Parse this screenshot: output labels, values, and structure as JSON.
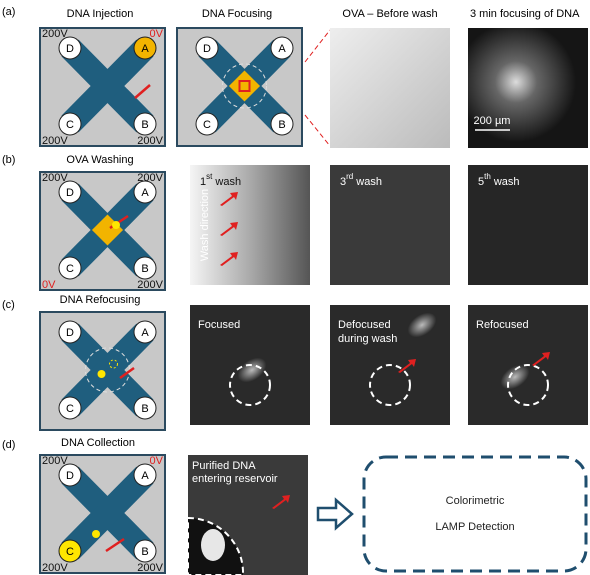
{
  "a": {
    "label": "(a)",
    "titles": [
      "DNA Injection",
      "DNA Focusing",
      "OVA – Before wash",
      "3 min focusing of DNA"
    ],
    "chip": {
      "voltages": [
        "200V",
        "0V",
        "200V",
        "200V"
      ],
      "nodes": [
        "D",
        "A",
        "C",
        "B"
      ]
    },
    "chip2": {
      "nodes": [
        "D",
        "A",
        "C",
        "B"
      ]
    },
    "scale_bar": "200 µm"
  },
  "b": {
    "label": "(b)",
    "title": "OVA Washing",
    "chip": {
      "voltages": [
        "200V",
        "200V",
        "0V",
        "200V"
      ],
      "nodes": [
        "D",
        "A",
        "C",
        "B"
      ]
    },
    "washes": [
      {
        "number": "1",
        "suffix": "st",
        "rest": " wash"
      },
      {
        "number": "3",
        "suffix": "rd",
        "rest": " wash"
      },
      {
        "number": "5",
        "suffix": "th",
        "rest": " wash"
      }
    ],
    "wash_direction": "Wash direction"
  },
  "c": {
    "label": "(c)",
    "title": "DNA Refocusing",
    "chip": {
      "nodes": [
        "D",
        "A",
        "C",
        "B"
      ]
    },
    "images": [
      [
        "Focused"
      ],
      [
        "Defocused",
        "during wash"
      ],
      [
        "Refocused"
      ]
    ]
  },
  "d": {
    "label": "(d)",
    "title": "DNA Collection",
    "chip": {
      "voltages": [
        "200V",
        "0V",
        "200V",
        "200V"
      ],
      "nodes": [
        "D",
        "A",
        "C",
        "B"
      ]
    },
    "image_caption": [
      "Purified DNA",
      "entering reservoir"
    ],
    "detection": [
      "Colorimetric",
      "LAMP Detection"
    ]
  }
}
